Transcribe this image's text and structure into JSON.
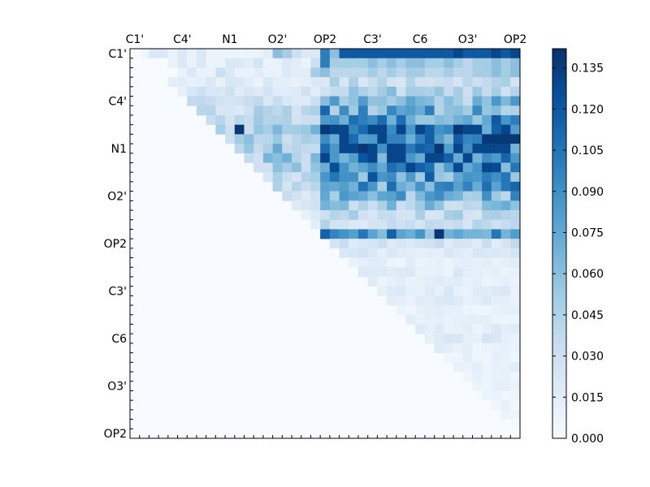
{
  "chart_data": {
    "type": "heatmap",
    "title": "",
    "x_tick_labels": [
      "C1'",
      "C4'",
      "N1",
      "O2'",
      "OP2",
      "C3'",
      "C6",
      "O3'",
      "OP2"
    ],
    "y_tick_labels": [
      "C1'",
      "C4'",
      "N1",
      "O2'",
      "OP2",
      "C3'",
      "C6",
      "O3'",
      "OP2"
    ],
    "grid_size": 41,
    "matrix_structure": "upper-triangular",
    "colormap": "Blues",
    "colorbar": {
      "ticks": [
        "0.000",
        "0.015",
        "0.030",
        "0.045",
        "0.060",
        "0.075",
        "0.090",
        "0.105",
        "0.120",
        "0.135"
      ],
      "range": [
        0.0,
        0.142
      ]
    },
    "approx_values": [
      [
        0,
        0.005,
        0.02,
        0.02,
        0.01,
        0.02,
        0.01,
        0.02,
        0.008,
        0.008,
        0.008,
        0.008,
        0.008,
        0.008,
        0.015,
        0.06,
        0.05,
        0.03,
        0.02,
        0.02,
        0.1,
        0.06,
        0.12,
        0.12,
        0.12,
        0.12,
        0.12,
        0.12,
        0.12,
        0.12,
        0.12,
        0.12,
        0.12,
        0.12,
        0.13,
        0.12,
        0.12,
        0.12,
        0.13,
        0.12,
        0.13
      ],
      [
        0,
        0,
        0,
        0,
        0.01,
        0.02,
        0.01,
        0.02,
        0.008,
        0.008,
        0.02,
        0.02,
        0.015,
        0.025,
        0.008,
        0.01,
        0.02,
        0.015,
        0.008,
        0.03,
        0.1,
        0.05,
        0.05,
        0.05,
        0.05,
        0.06,
        0.05,
        0.06,
        0.05,
        0.06,
        0.06,
        0.05,
        0.05,
        0.06,
        0.05,
        0.04,
        0.05,
        0.05,
        0.06,
        0.05,
        0.06
      ],
      [
        0,
        0,
        0,
        0,
        0,
        0.01,
        0.02,
        0.01,
        0.01,
        0.03,
        0.02,
        0.01,
        0.01,
        0.015,
        0.01,
        0.01,
        0.02,
        0.015,
        0.015,
        0.05,
        0.06,
        0.04,
        0.04,
        0.04,
        0.04,
        0.05,
        0.04,
        0.05,
        0.04,
        0.05,
        0.05,
        0.04,
        0.04,
        0.05,
        0.04,
        0.04,
        0.05,
        0.05,
        0.06,
        0.05,
        0.06
      ]
    ],
    "approx_values_note": "Only the first three of the 41 rows are readable by eye; the rest are drawn from the profile below.",
    "row_scale": [
      0.98,
      0.52,
      0.44,
      0.28,
      0.38,
      0.5,
      0.65,
      0.75,
      1.0,
      0.9,
      1.0,
      0.95,
      0.78,
      0.72,
      0.65,
      0.58,
      0.42,
      0.32,
      0.26,
      0.82,
      0.22,
      0.16,
      0.1,
      0.12,
      0.1,
      0.14,
      0.12,
      0.09,
      0.09,
      0.12,
      0.14,
      0.1,
      0.09,
      0.1,
      0.09,
      0.1,
      0.08,
      0.07,
      0.05,
      0.03,
      0.0
    ],
    "hot_cells": [
      [
        0,
        33
      ],
      [
        8,
        11
      ],
      [
        8,
        20
      ],
      [
        8,
        34
      ],
      [
        9,
        37
      ],
      [
        9,
        38
      ],
      [
        9,
        39
      ],
      [
        9,
        40
      ],
      [
        10,
        32
      ],
      [
        10,
        24
      ],
      [
        19,
        32
      ]
    ],
    "hot_cells_note": "Cells the picture shows darkest; position is [row, column] in the 41-cell grid."
  }
}
